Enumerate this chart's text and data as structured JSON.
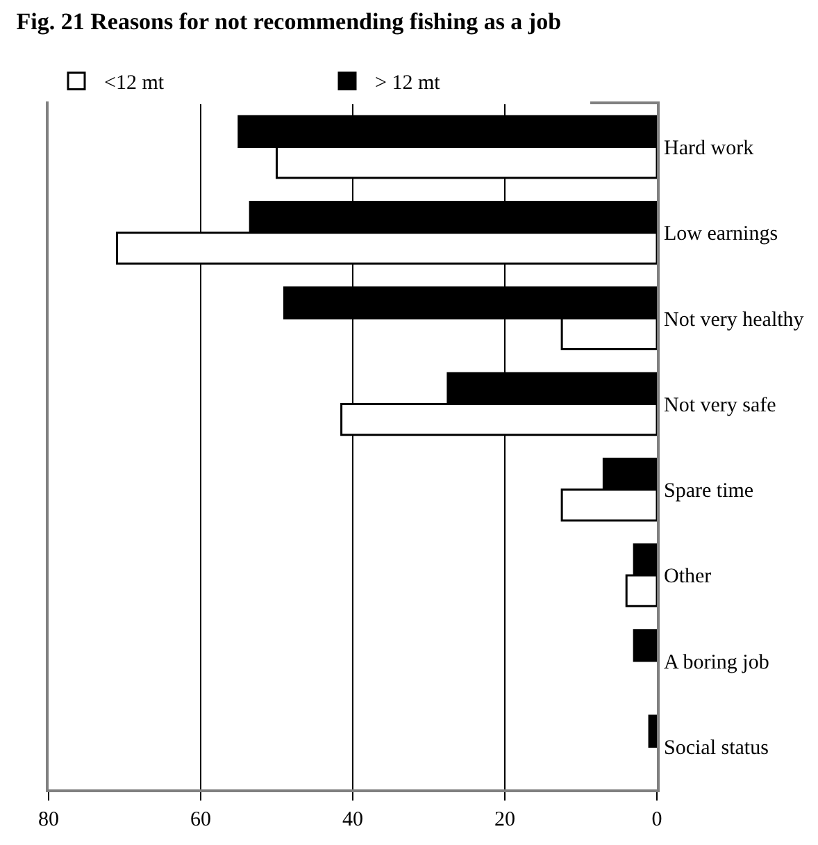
{
  "chart_data": {
    "type": "bar",
    "orientation": "horizontal",
    "title": "Fig. 21 Reasons for not recommending fishing as a job",
    "categories": [
      "Hard work",
      "Low earnings",
      "Not very healthy",
      "Not very safe",
      "Spare time",
      "Other",
      "A boring job",
      "Social status"
    ],
    "series": [
      {
        "name": "<12 mt",
        "color": "#ffffff",
        "values": [
          50,
          71,
          12.5,
          41.5,
          12.5,
          4,
          null,
          null
        ]
      },
      {
        "name": "> 12 mt",
        "color": "#000000",
        "values": [
          55,
          53.5,
          49,
          27.5,
          7,
          3,
          3,
          1
        ]
      }
    ],
    "xlim": [
      80,
      0
    ],
    "xticks": [
      80,
      60,
      40,
      20,
      0
    ],
    "grid": "x",
    "legend": "top"
  }
}
